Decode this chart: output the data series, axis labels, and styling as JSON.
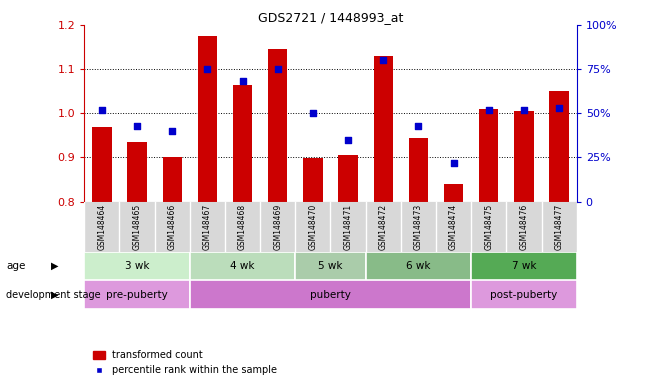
{
  "title": "GDS2721 / 1448993_at",
  "samples": [
    "GSM148464",
    "GSM148465",
    "GSM148466",
    "GSM148467",
    "GSM148468",
    "GSM148469",
    "GSM148470",
    "GSM148471",
    "GSM148472",
    "GSM148473",
    "GSM148474",
    "GSM148475",
    "GSM148476",
    "GSM148477"
  ],
  "transformed_counts": [
    0.97,
    0.935,
    0.901,
    1.175,
    1.065,
    1.145,
    0.898,
    0.905,
    1.13,
    0.945,
    0.84,
    1.01,
    1.005,
    1.05
  ],
  "percentile_ranks": [
    52,
    43,
    40,
    75,
    68,
    75,
    50,
    35,
    80,
    43,
    22,
    52,
    52,
    53
  ],
  "bar_color": "#cc0000",
  "dot_color": "#0000cc",
  "ymin": 0.8,
  "ymax": 1.2,
  "yticks": [
    0.8,
    0.9,
    1.0,
    1.1,
    1.2
  ],
  "right_yticks": [
    0,
    25,
    50,
    75,
    100
  ],
  "right_yticklabels": [
    "0",
    "25%",
    "50%",
    "75%",
    "100%"
  ],
  "age_groups": [
    {
      "label": "3 wk",
      "start": 0,
      "end": 3
    },
    {
      "label": "4 wk",
      "start": 3,
      "end": 6
    },
    {
      "label": "5 wk",
      "start": 6,
      "end": 8
    },
    {
      "label": "6 wk",
      "start": 8,
      "end": 11
    },
    {
      "label": "7 wk",
      "start": 11,
      "end": 14
    }
  ],
  "age_colors": [
    "#cceecc",
    "#bbddbb",
    "#aaccaa",
    "#88bb88",
    "#55aa55"
  ],
  "dev_groups": [
    {
      "label": "pre-puberty",
      "start": 0,
      "end": 3
    },
    {
      "label": "puberty",
      "start": 3,
      "end": 11
    },
    {
      "label": "post-puberty",
      "start": 11,
      "end": 14
    }
  ],
  "dev_colors": [
    "#dd99dd",
    "#cc77cc",
    "#dd99dd"
  ],
  "legend_bar_label": "transformed count",
  "legend_dot_label": "percentile rank within the sample",
  "bar_color_str": "#cc0000",
  "dot_color_str": "#0000cc",
  "left_tick_color": "#cc0000",
  "right_tick_color": "#0000cc",
  "sample_bg_color": "#d8d8d8",
  "grid_lines": [
    0.9,
    1.0,
    1.1
  ]
}
